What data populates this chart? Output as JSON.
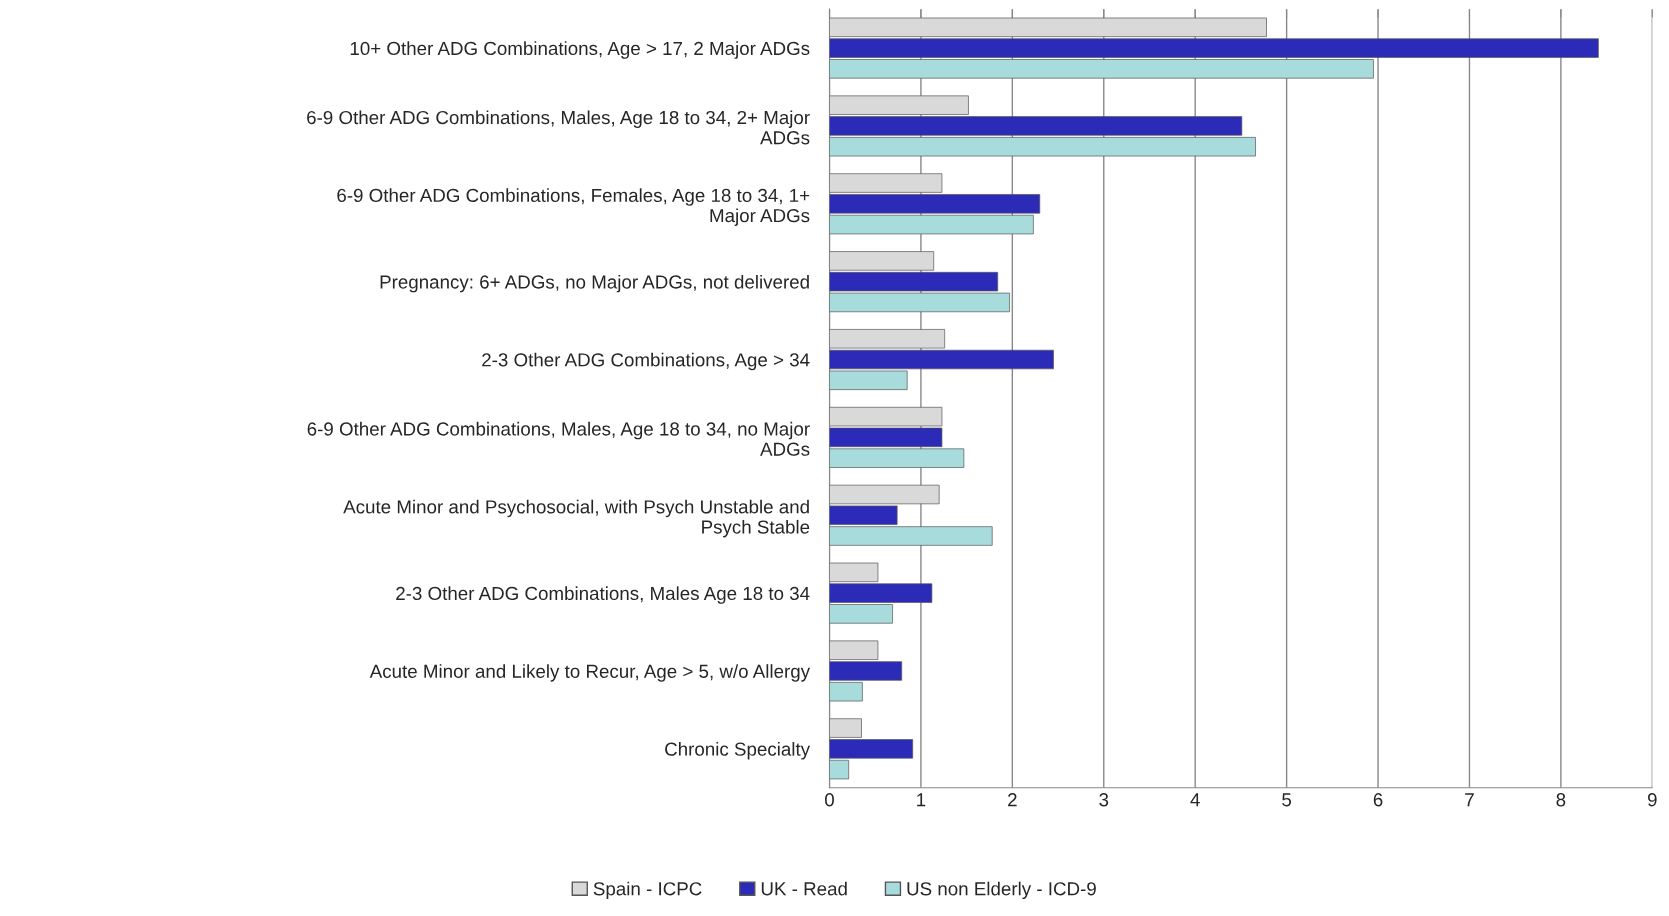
{
  "chart_data": {
    "type": "bar",
    "orientation": "horizontal",
    "categories": [
      "10+ Other ADG Combinations, Age > 17, 2 Major ADGs",
      "6-9 Other ADG Combinations, Males, Age 18 to 34, 2+ Major\nADGs",
      "6-9 Other ADG Combinations, Females, Age 18 to 34, 1+\nMajor ADGs",
      "Pregnancy: 6+ ADGs, no Major ADGs, not delivered",
      "2-3 Other ADG Combinations, Age > 34",
      "6-9 Other ADG Combinations, Males, Age 18 to 34, no Major\nADGs",
      "Acute Minor and Psychosocial, with Psych Unstable and\nPsych Stable",
      "2-3 Other ADG Combinations, Males Age 18 to 34",
      "Acute Minor and Likely to Recur, Age > 5, w/o Allergy",
      "Chronic Specialty"
    ],
    "series": [
      {
        "name": "Spain - ICPC",
        "color": "#d9d9d9",
        "values": [
          4.78,
          1.52,
          1.23,
          1.14,
          1.26,
          1.23,
          1.2,
          0.53,
          0.53,
          0.35
        ]
      },
      {
        "name": "UK - Read",
        "color": "#2b2bb8",
        "values": [
          8.41,
          4.51,
          2.3,
          1.84,
          2.45,
          1.23,
          0.74,
          1.12,
          0.79,
          0.91
        ]
      },
      {
        "name": "US non Elderly - ICD-9",
        "color": "#a8dcdc",
        "values": [
          5.95,
          4.66,
          2.23,
          1.97,
          0.85,
          1.47,
          1.78,
          0.69,
          0.36,
          0.21
        ]
      }
    ],
    "xlim": [
      0,
      9
    ],
    "xticks": [
      0,
      1,
      2,
      3,
      4,
      5,
      6,
      7,
      8,
      9
    ],
    "grid": "x",
    "legend": "bottom"
  }
}
